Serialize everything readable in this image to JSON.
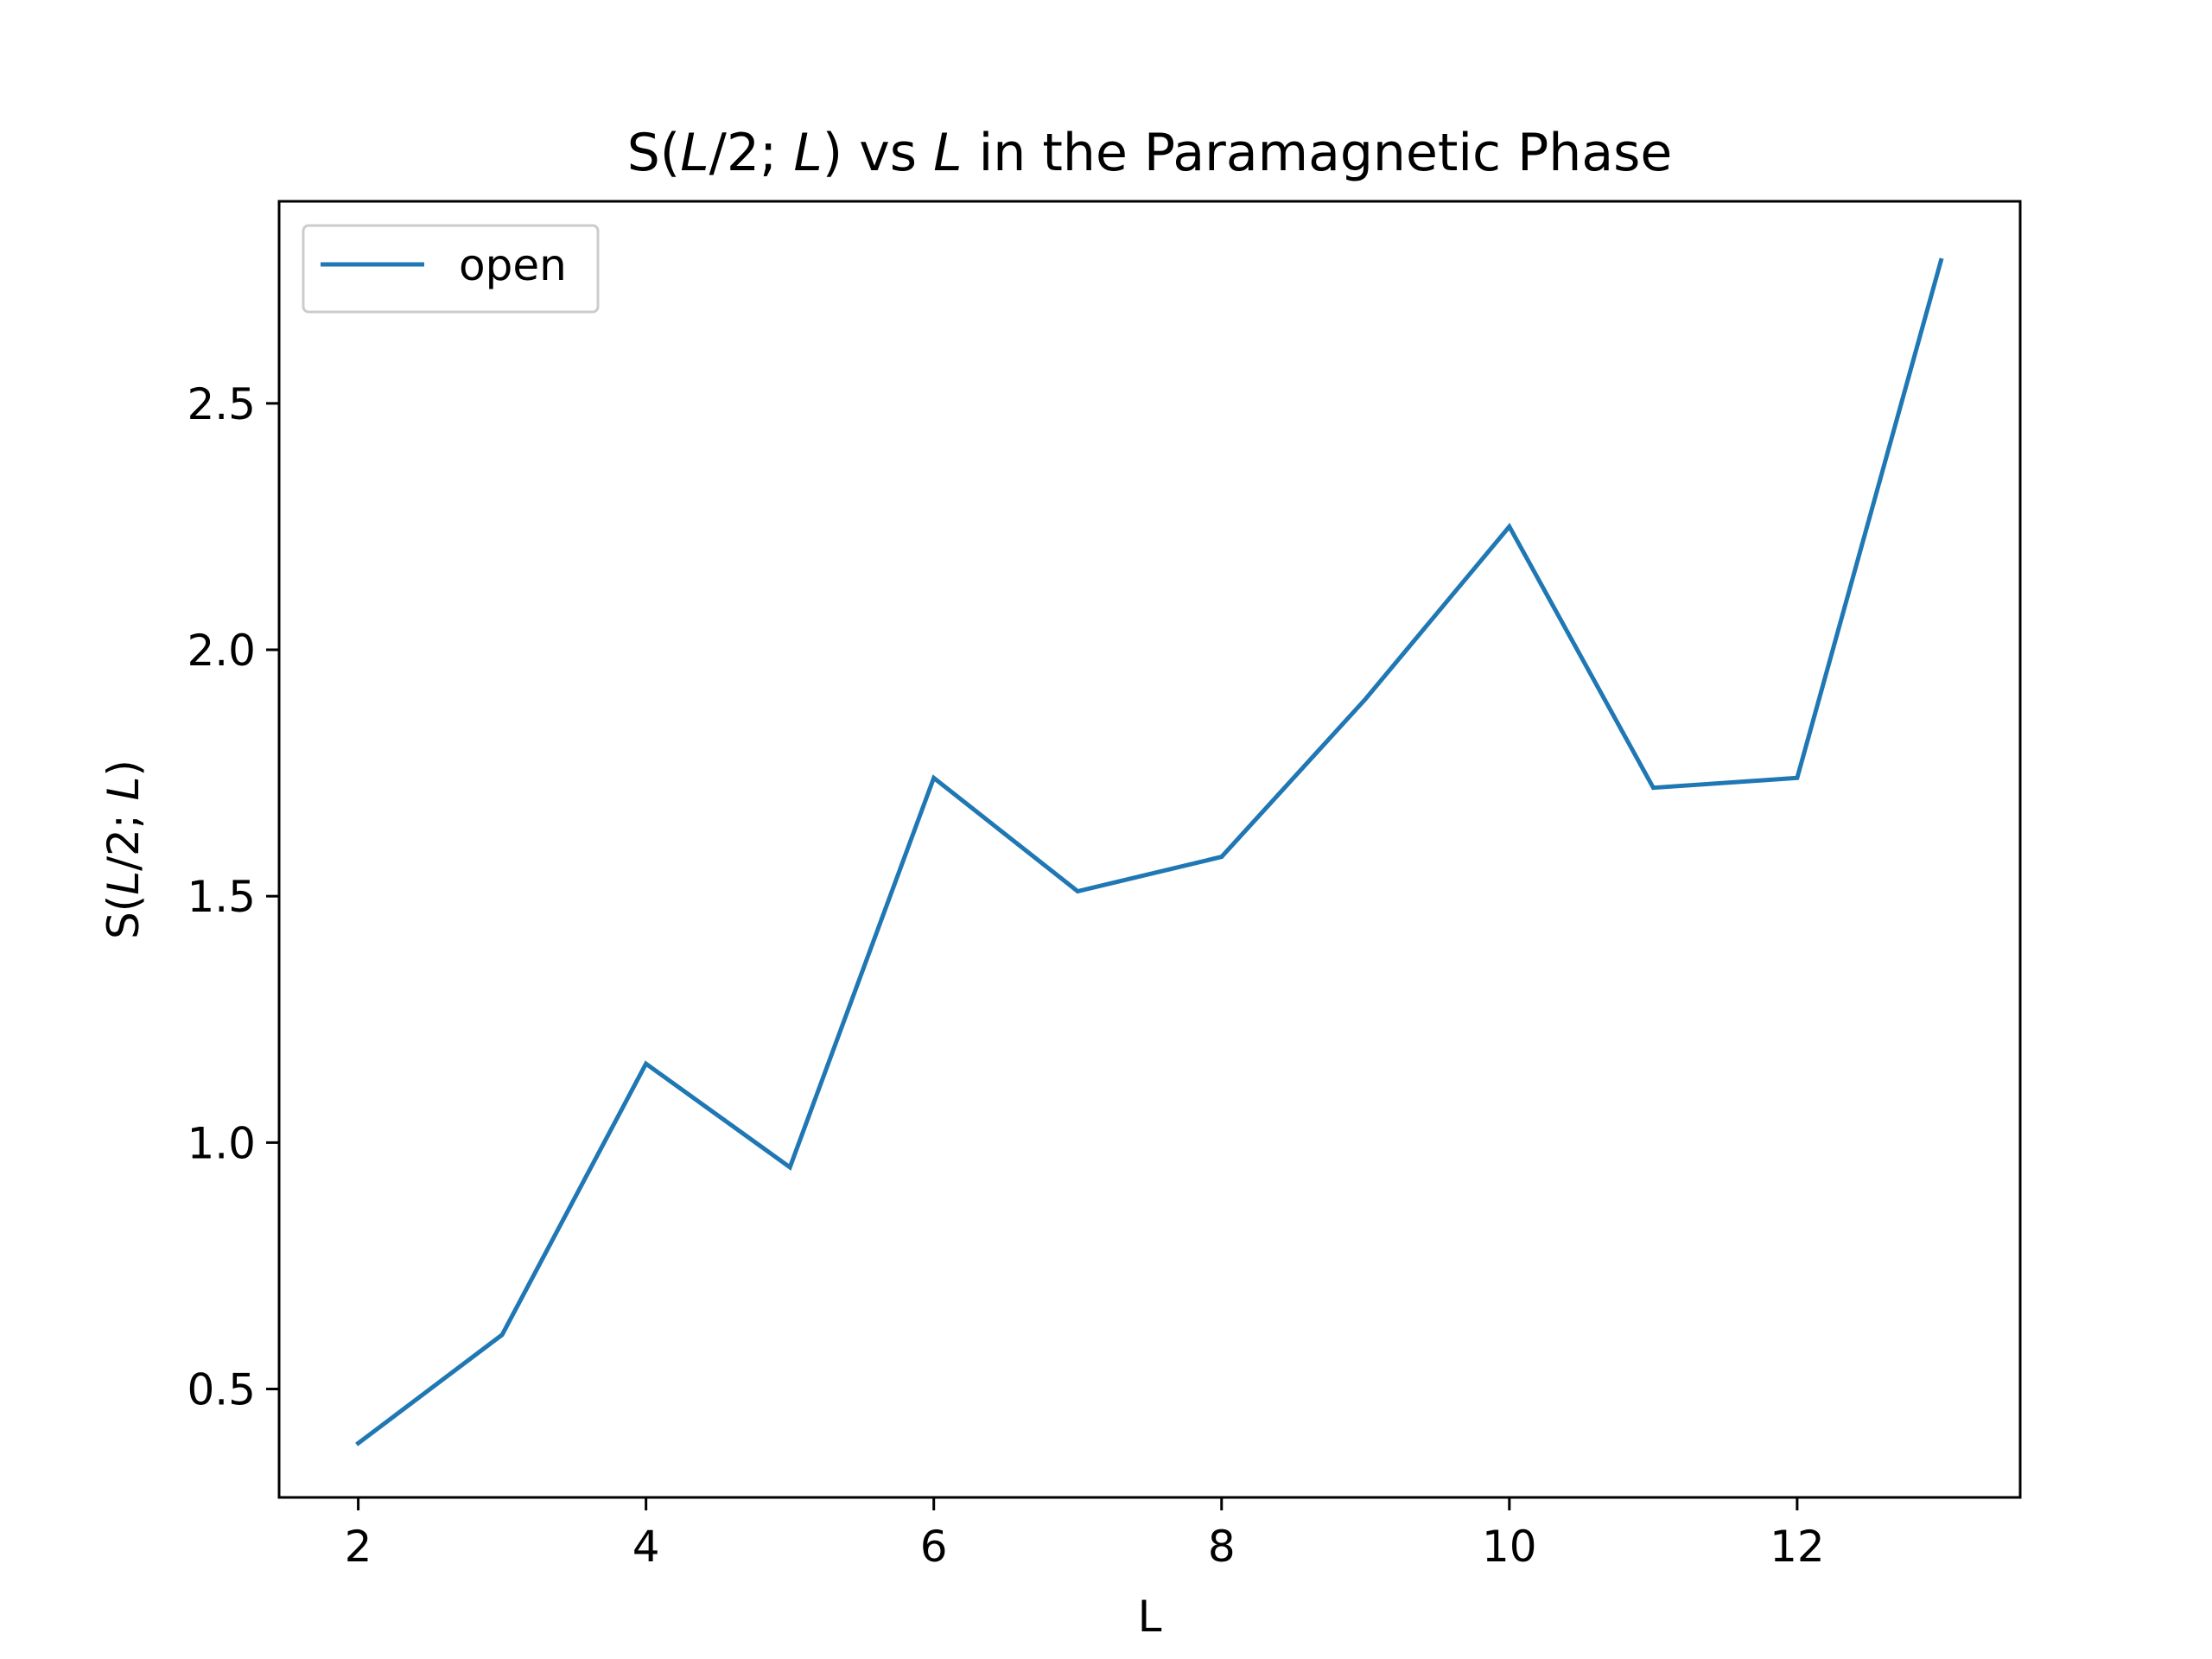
{
  "chart_data": {
    "type": "line",
    "title": "S(L/2; L) vs L in the Paramagnetic Phase",
    "title_parts": [
      {
        "text": "S(",
        "italic": false
      },
      {
        "text": "L",
        "italic": true
      },
      {
        "text": "/2; ",
        "italic": false
      },
      {
        "text": "L",
        "italic": true
      },
      {
        "text": ") vs ",
        "italic": false
      },
      {
        "text": "L",
        "italic": true
      },
      {
        "text": " in the Paramagnetic Phase",
        "italic": false
      }
    ],
    "xlabel": "L",
    "ylabel": "S(L/2; L)",
    "ylabel_parts": [
      {
        "text": "S(",
        "italic": false
      },
      {
        "text": "L",
        "italic": true
      },
      {
        "text": "/2; ",
        "italic": false
      },
      {
        "text": "L",
        "italic": true
      },
      {
        "text": ")",
        "italic": false
      }
    ],
    "xlim": [
      1.45,
      13.55
    ],
    "ylim": [
      0.28,
      2.91
    ],
    "xticks": [
      2,
      4,
      6,
      8,
      10,
      12
    ],
    "xtick_labels": [
      "2",
      "4",
      "6",
      "8",
      "10",
      "12"
    ],
    "yticks": [
      0.5,
      1.0,
      1.5,
      2.0,
      2.5
    ],
    "ytick_labels": [
      "0.5",
      "1.0",
      "1.5",
      "2.0",
      "2.5"
    ],
    "grid": false,
    "legend_position": "upper-left",
    "series": [
      {
        "name": "open",
        "color": "#1f77b4",
        "x": [
          2,
          3,
          4,
          5,
          6,
          7,
          8,
          9,
          10,
          11,
          12,
          13
        ],
        "y": [
          0.39,
          0.61,
          1.16,
          0.95,
          1.74,
          1.51,
          1.58,
          1.9,
          2.25,
          1.72,
          1.74,
          2.79
        ]
      }
    ]
  }
}
